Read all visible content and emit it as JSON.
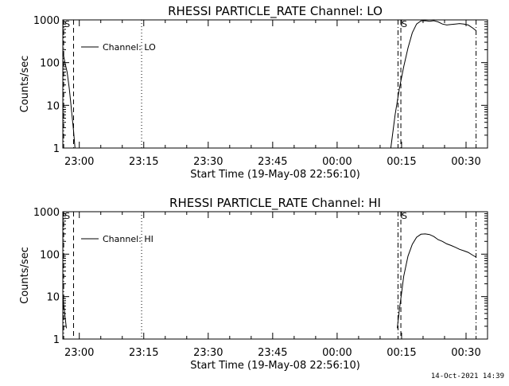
{
  "stamp": "14-Oct-2021 14:39",
  "colors": {
    "background": "#ffffff",
    "foreground": "#000000"
  },
  "chart_data": [
    {
      "type": "line",
      "title": "RHESSI PARTICLE_RATE Channel: LO",
      "xlabel": "Start Time (19-May-08 22:56:10)",
      "ylabel": "Counts/sec",
      "yscale": "log",
      "ylim": [
        1,
        1000
      ],
      "xlim": [
        "22:56:10",
        "00:35:00"
      ],
      "xticks": [
        "23:00",
        "23:15",
        "23:30",
        "23:45",
        "00:00",
        "00:15",
        "00:30"
      ],
      "yticks": [
        "1",
        "10",
        "100",
        "1000"
      ],
      "legend": {
        "label": "Channel: LO",
        "placement": "top-left"
      },
      "markers": [
        {
          "t": "22:56:22",
          "style": "dot-dash",
          "label": "S"
        },
        {
          "t": "22:58:40",
          "style": "dash"
        },
        {
          "t": "23:14:30",
          "style": "dot"
        },
        {
          "t": "00:14:10",
          "style": "dot-dash"
        },
        {
          "t": "00:14:50",
          "style": "dash",
          "label": "S"
        },
        {
          "t": "00:32:20",
          "style": "dot-dash"
        }
      ],
      "series": [
        {
          "name": "Channel: LO",
          "segments": [
            [
              [
                "22:56:10",
                180
              ],
              [
                "22:56:40",
                100
              ],
              [
                "22:57:10",
                60
              ],
              [
                "22:57:40",
                25
              ],
              [
                "22:58:10",
                8
              ],
              [
                "22:58:40",
                2.5
              ],
              [
                "22:59:00",
                1
              ]
            ],
            [
              [
                "00:12:30",
                1
              ],
              [
                "00:13:30",
                6
              ],
              [
                "00:14:30",
                25
              ],
              [
                "00:15:30",
                80
              ],
              [
                "00:16:30",
                220
              ],
              [
                "00:17:30",
                500
              ],
              [
                "00:18:30",
                800
              ],
              [
                "00:19:30",
                950
              ],
              [
                "00:20:30",
                960
              ],
              [
                "00:21:30",
                930
              ],
              [
                "00:22:30",
                960
              ],
              [
                "00:23:30",
                900
              ],
              [
                "00:24:30",
                800
              ],
              [
                "00:25:30",
                760
              ],
              [
                "00:26:30",
                780
              ],
              [
                "00:27:30",
                800
              ],
              [
                "00:28:30",
                820
              ],
              [
                "00:29:30",
                800
              ],
              [
                "00:30:30",
                760
              ],
              [
                "00:31:30",
                650
              ],
              [
                "00:32:20",
                560
              ]
            ]
          ]
        }
      ]
    },
    {
      "type": "line",
      "title": "RHESSI PARTICLE_RATE Channel: HI",
      "xlabel": "Start Time (19-May-08 22:56:10)",
      "ylabel": "Counts/sec",
      "yscale": "log",
      "ylim": [
        1,
        1000
      ],
      "xlim": [
        "22:56:10",
        "00:35:00"
      ],
      "xticks": [
        "23:00",
        "23:15",
        "23:30",
        "23:45",
        "00:00",
        "00:15",
        "00:30"
      ],
      "yticks": [
        "1",
        "10",
        "100",
        "1000"
      ],
      "legend": {
        "label": "Channel: HI",
        "placement": "top-left"
      },
      "markers": [
        {
          "t": "22:56:22",
          "style": "dot-dash",
          "label": "S"
        },
        {
          "t": "22:58:40",
          "style": "dash"
        },
        {
          "t": "23:14:30",
          "style": "dot"
        },
        {
          "t": "00:14:10",
          "style": "dot-dash"
        },
        {
          "t": "00:14:50",
          "style": "dash",
          "label": "S"
        },
        {
          "t": "00:32:20",
          "style": "dot-dash"
        }
      ],
      "series": [
        {
          "name": "Channel: HI",
          "segments": [
            [
              [
                "22:56:10",
                10
              ],
              [
                "22:56:30",
                5
              ],
              [
                "22:56:50",
                2.5
              ],
              [
                "22:57:00",
                1.8
              ]
            ],
            [
              [
                "00:14:00",
                1.8
              ],
              [
                "00:14:30",
                5
              ],
              [
                "00:15:00",
                12
              ],
              [
                "00:15:30",
                30
              ],
              [
                "00:16:30",
                90
              ],
              [
                "00:17:30",
                170
              ],
              [
                "00:18:30",
                250
              ],
              [
                "00:19:30",
                295
              ],
              [
                "00:20:30",
                300
              ],
              [
                "00:21:30",
                290
              ],
              [
                "00:22:30",
                260
              ],
              [
                "00:23:30",
                220
              ],
              [
                "00:24:30",
                200
              ],
              [
                "00:25:30",
                175
              ],
              [
                "00:26:30",
                160
              ],
              [
                "00:27:30",
                145
              ],
              [
                "00:28:30",
                130
              ],
              [
                "00:29:30",
                120
              ],
              [
                "00:30:30",
                110
              ],
              [
                "00:31:30",
                95
              ],
              [
                "00:32:20",
                85
              ]
            ]
          ]
        }
      ]
    }
  ]
}
